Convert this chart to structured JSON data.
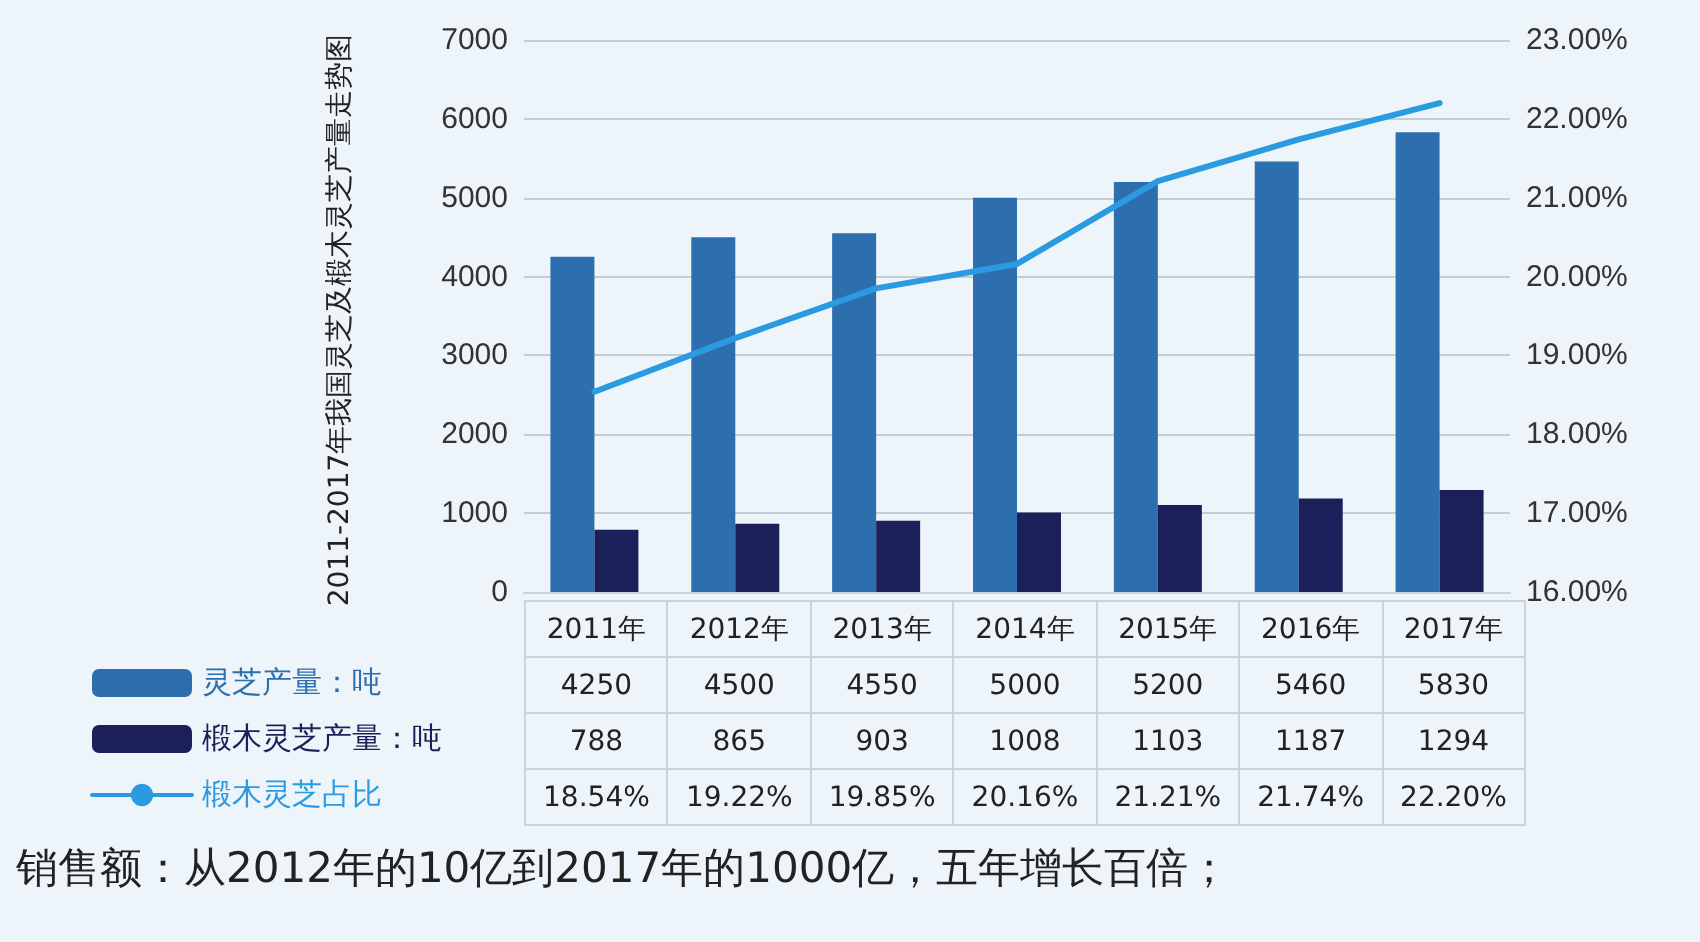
{
  "chart_data": {
    "type": "bar",
    "title": "2011-2017年我国灵芝及椴木灵芝产量走势图",
    "categories": [
      "2011年",
      "2012年",
      "2013年",
      "2014年",
      "2015年",
      "2016年",
      "2017年"
    ],
    "series": [
      {
        "name": "灵芝产量：吨",
        "color": "#2d6fae",
        "values": [
          4250,
          4500,
          4550,
          5000,
          5200,
          5460,
          5830
        ],
        "value_labels": [
          "4250",
          "4500",
          "4550",
          "5000",
          "5200",
          "5460",
          "5830"
        ]
      },
      {
        "name": "椴木灵芝产量：吨",
        "color": "#1b1f5a",
        "values": [
          788,
          865,
          903,
          1008,
          1103,
          1187,
          1294
        ],
        "value_labels": [
          "788",
          "865",
          "903",
          "1008",
          "1103",
          "1187",
          "1294"
        ]
      },
      {
        "name": "椴木灵芝占比",
        "type": "line",
        "axis": "y2",
        "color": "#2a9be0",
        "values": [
          18.54,
          19.22,
          19.85,
          20.16,
          21.21,
          21.74,
          22.2
        ],
        "value_labels": [
          "18.54%",
          "19.22%",
          "19.85%",
          "20.16%",
          "21.21%",
          "21.74%",
          "22.20%"
        ]
      }
    ],
    "ylim": [
      0,
      7000
    ],
    "yticks": [
      0,
      1000,
      2000,
      3000,
      4000,
      5000,
      6000,
      7000
    ],
    "y2lim": [
      16,
      23
    ],
    "y2ticks": [
      {
        "value": 16,
        "label": "16.00%"
      },
      {
        "value": 17,
        "label": "17.00%"
      },
      {
        "value": 18,
        "label": "18.00%"
      },
      {
        "value": 19,
        "label": "19.00%"
      },
      {
        "value": 20,
        "label": "20.00%"
      },
      {
        "value": 21,
        "label": "21.00%"
      },
      {
        "value": 22,
        "label": "22.00%"
      },
      {
        "value": 23,
        "label": "23.00%"
      }
    ],
    "grid": "y",
    "legend": "bottom left",
    "marker": "none",
    "line_style": "solid",
    "annotations": [
      "销售额：从2012年的10亿到2017年的1000亿，五年增长百倍；"
    ]
  }
}
